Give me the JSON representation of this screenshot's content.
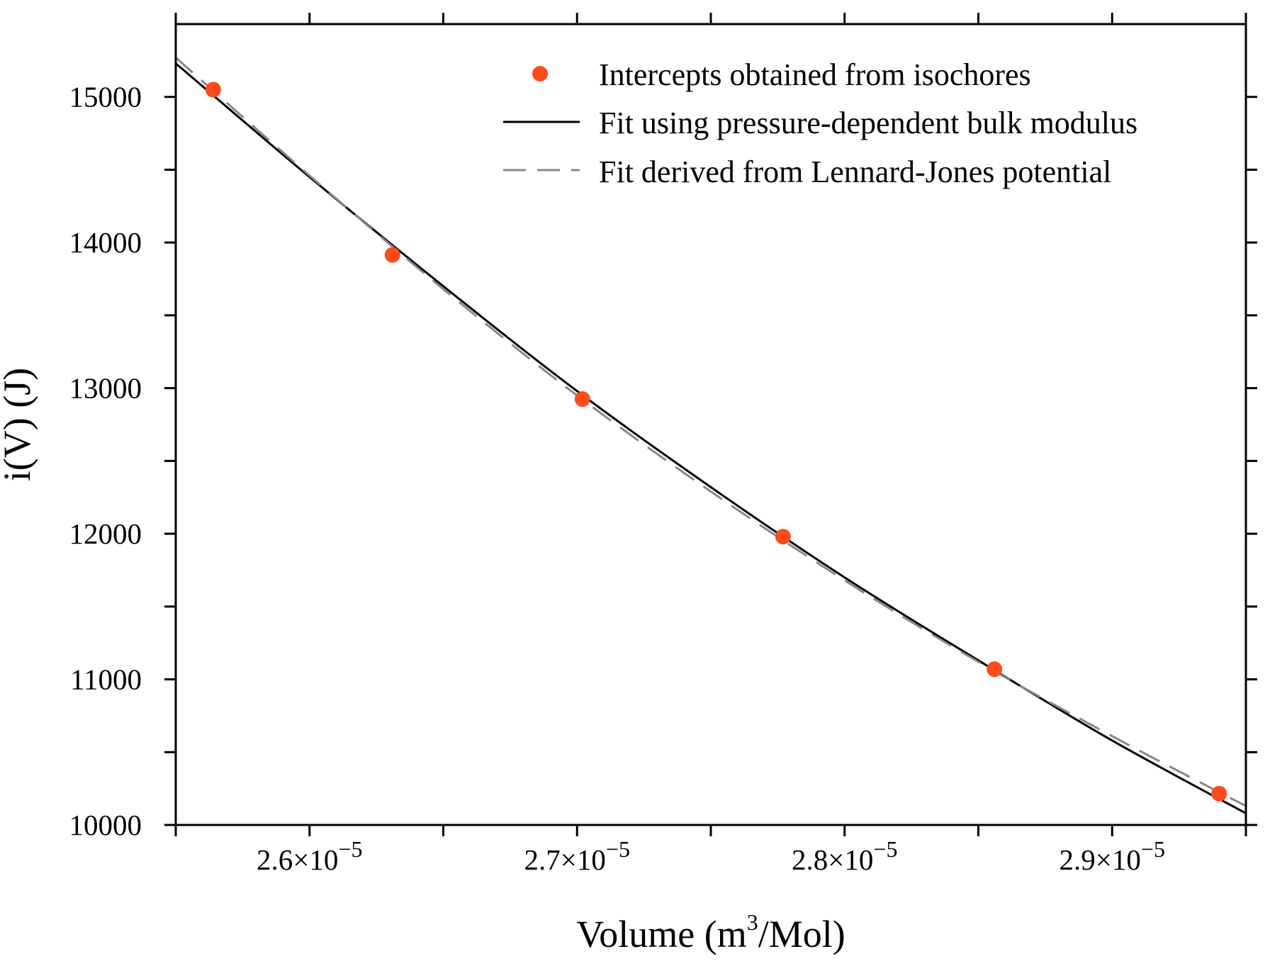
{
  "chart_data": {
    "type": "scatter",
    "title": "",
    "xlabel": {
      "prefix": "Volume (m",
      "sup": "3",
      "suffix": "/Mol)"
    },
    "ylabel": "i(V) (J)",
    "xlim": [
      2.55e-05,
      2.95e-05
    ],
    "ylim": [
      10000,
      15500
    ],
    "x_ticks": [
      {
        "value": 2.6e-05,
        "mantissa": "2.6×10",
        "exp": "−5"
      },
      {
        "value": 2.7e-05,
        "mantissa": "2.7×10",
        "exp": "−5"
      },
      {
        "value": 2.8e-05,
        "mantissa": "2.8×10",
        "exp": "−5"
      },
      {
        "value": 2.9e-05,
        "mantissa": "2.9×10",
        "exp": "−5"
      }
    ],
    "x_minor_ticks": [
      2.55e-05,
      2.65e-05,
      2.75e-05,
      2.85e-05,
      2.95e-05
    ],
    "y_ticks": [
      {
        "value": 10000,
        "label": "10000"
      },
      {
        "value": 11000,
        "label": "11000"
      },
      {
        "value": 12000,
        "label": "12000"
      },
      {
        "value": 13000,
        "label": "13000"
      },
      {
        "value": 14000,
        "label": "14000"
      },
      {
        "value": 15000,
        "label": "15000"
      }
    ],
    "y_minor_ticks": [
      10500,
      11500,
      12500,
      13500,
      14500
    ],
    "legend_position": "top-right",
    "grid": false,
    "series": [
      {
        "name": "Intercepts obtained from isochores",
        "kind": "points",
        "color": "#ff4a1c",
        "x": [
          2.564e-05,
          2.631e-05,
          2.702e-05,
          2.777e-05,
          2.856e-05,
          2.94e-05
        ],
        "y": [
          15050,
          13915,
          12925,
          11980,
          11070,
          10215
        ]
      },
      {
        "name": "Fit using pressure-dependent bulk modulus",
        "kind": "line",
        "color": "#000000",
        "dash": "solid",
        "x": [
          2.55e-05,
          2.6e-05,
          2.65e-05,
          2.7e-05,
          2.75e-05,
          2.8e-05,
          2.85e-05,
          2.9e-05,
          2.95e-05
        ],
        "y": [
          15230,
          14450,
          13700,
          12980,
          12320,
          11700,
          11130,
          10580,
          10080
        ]
      },
      {
        "name": "Fit derived from Lennard-Jones potential",
        "kind": "line",
        "color": "#888888",
        "dash": "dashed",
        "x": [
          2.55e-05,
          2.6e-05,
          2.65e-05,
          2.7e-05,
          2.75e-05,
          2.8e-05,
          2.85e-05,
          2.9e-05,
          2.95e-05
        ],
        "y": [
          15270,
          14460,
          13680,
          12950,
          12290,
          11680,
          11120,
          10610,
          10130
        ]
      }
    ]
  }
}
